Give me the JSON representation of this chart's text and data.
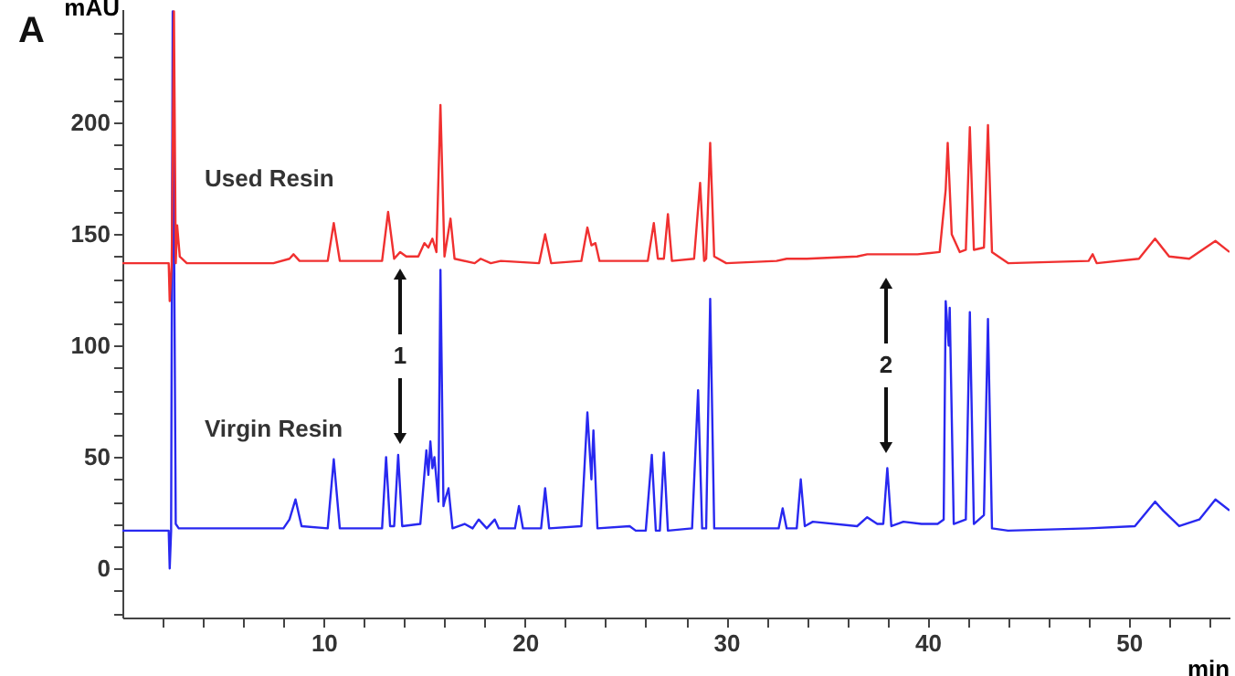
{
  "chart_data": {
    "type": "line",
    "xlabel": "min",
    "ylabel": "mAU",
    "xlim": [
      0,
      55
    ],
    "ylim": [
      -22,
      251
    ],
    "xticks": [
      {
        "value": 2,
        "label": null
      },
      {
        "value": 4,
        "label": null
      },
      {
        "value": 6,
        "label": null
      },
      {
        "value": 8,
        "label": null
      },
      10,
      {
        "value": 12,
        "label": null
      },
      {
        "value": 14,
        "label": null
      },
      {
        "value": 16,
        "label": null
      },
      {
        "value": 18,
        "label": null
      },
      20,
      {
        "value": 22,
        "label": null
      },
      {
        "value": 24,
        "label": null
      },
      {
        "value": 26,
        "label": null
      },
      {
        "value": 28,
        "label": null
      },
      30,
      {
        "value": 32,
        "label": null
      },
      {
        "value": 34,
        "label": null
      },
      {
        "value": 36,
        "label": null
      },
      {
        "value": 38,
        "label": null
      },
      40,
      {
        "value": 42,
        "label": null
      },
      {
        "value": 44,
        "label": null
      },
      {
        "value": 46,
        "label": null
      },
      {
        "value": 48,
        "label": null
      },
      50,
      {
        "value": 52,
        "label": null
      },
      {
        "value": 54,
        "label": null
      }
    ],
    "yticks": [
      {
        "value": -20,
        "label": null
      },
      {
        "value": -10,
        "label": null
      },
      0,
      {
        "value": 10,
        "label": null
      },
      {
        "value": 20,
        "label": null
      },
      {
        "value": 30,
        "label": null
      },
      {
        "value": 40,
        "label": null
      },
      50,
      {
        "value": 60,
        "label": null
      },
      {
        "value": 70,
        "label": null
      },
      {
        "value": 80,
        "label": null
      },
      {
        "value": 90,
        "label": null
      },
      100,
      {
        "value": 110,
        "label": null
      },
      {
        "value": 120,
        "label": null
      },
      {
        "value": 130,
        "label": null
      },
      {
        "value": 140,
        "label": null
      },
      150,
      {
        "value": 160,
        "label": null
      },
      {
        "value": 170,
        "label": null
      },
      {
        "value": 180,
        "label": null
      },
      {
        "value": 190,
        "label": null
      },
      200,
      {
        "value": 210,
        "label": null
      },
      {
        "value": 220,
        "label": null
      },
      {
        "value": 230,
        "label": null
      },
      {
        "value": 240,
        "label": null
      }
    ],
    "grid": false,
    "legend": false,
    "marker": "none",
    "line_style": "solid",
    "annotations": [
      "A",
      "1",
      "2"
    ],
    "series": [
      {
        "name": "Used Resin",
        "color": "#f03030",
        "x": [
          0,
          2.3,
          2.35,
          2.45,
          2.56,
          2.65,
          2.72,
          2.85,
          3.2,
          7.5,
          8.3,
          8.5,
          8.8,
          10.2,
          10.5,
          10.8,
          12,
          12.9,
          13.2,
          13.5,
          13.8,
          14.1,
          14.7,
          15.0,
          15.2,
          15.4,
          15.6,
          15.8,
          16.0,
          16.3,
          16.5,
          17.5,
          17.8,
          18.3,
          18.8,
          20.7,
          21,
          21.3,
          22.8,
          23.1,
          23.3,
          23.5,
          23.7,
          26.1,
          26.4,
          26.6,
          26.9,
          27.1,
          27.3,
          28.4,
          28.7,
          28.9,
          29.0,
          29.2,
          29.4,
          30,
          32.5,
          33,
          34,
          36.5,
          37,
          38,
          39.5,
          40.6,
          40.9,
          41.0,
          41.2,
          41.6,
          41.9,
          42.1,
          42.3,
          42.8,
          43,
          43.2,
          44,
          48,
          48.2,
          48.4,
          50.5,
          51.3,
          52,
          53,
          54.3,
          55
        ],
        "values": [
          137,
          137,
          120,
          137,
          250,
          137,
          154,
          140,
          137,
          137,
          139,
          141,
          138,
          138,
          155,
          138,
          138,
          138,
          160,
          139,
          142,
          140,
          140,
          146,
          144,
          148,
          142,
          208,
          140,
          157,
          139,
          137,
          139,
          137,
          138,
          137,
          150,
          137,
          138,
          153,
          145,
          146,
          138,
          138,
          155,
          139,
          139,
          159,
          138,
          139,
          173,
          138,
          139,
          191,
          140,
          137,
          138,
          139,
          139,
          140,
          141,
          141,
          141,
          142,
          170,
          191,
          150,
          142,
          143,
          198,
          143,
          144,
          199,
          142,
          137,
          138,
          141,
          137,
          139,
          148,
          140,
          139,
          147,
          142
        ]
      },
      {
        "name": "Virgin Resin",
        "color": "#2828f0",
        "x": [
          0,
          2.3,
          2.35,
          2.42,
          2.5,
          2.65,
          2.8,
          8.0,
          8.3,
          8.6,
          8.9,
          10.2,
          10.5,
          10.8,
          12.9,
          13.1,
          13.3,
          13.5,
          13.7,
          13.9,
          14.8,
          15.1,
          15.2,
          15.3,
          15.4,
          15.5,
          15.7,
          15.8,
          15.95,
          16.0,
          16.2,
          16.4,
          17,
          17.4,
          17.7,
          18.1,
          18.5,
          18.7,
          19.5,
          19.7,
          19.9,
          20.8,
          21,
          21.2,
          22.8,
          23.1,
          23.3,
          23.4,
          23.6,
          25.2,
          25.5,
          26.0,
          26.3,
          26.5,
          26.7,
          26.9,
          27.1,
          28.3,
          28.6,
          28.8,
          29.0,
          29.2,
          29.4,
          32.6,
          32.8,
          33,
          33.5,
          33.7,
          33.9,
          34.3,
          36.5,
          37,
          37.5,
          37.8,
          38,
          38.2,
          38.8,
          39.7,
          40.5,
          40.8,
          40.9,
          41.05,
          41.1,
          41.3,
          41.9,
          42.1,
          42.3,
          42.8,
          43,
          43.2,
          44,
          48,
          50.3,
          51.3,
          51.7,
          52.5,
          53.5,
          54.3,
          55
        ],
        "values": [
          17,
          17,
          0,
          17,
          250,
          20,
          18,
          18,
          22,
          31,
          19,
          18,
          49,
          18,
          18,
          50,
          19,
          19,
          51,
          19,
          20,
          53,
          42,
          57,
          45,
          50,
          30,
          134,
          28,
          30,
          36,
          18,
          20,
          18,
          22,
          18,
          22,
          18,
          18,
          28,
          18,
          18,
          36,
          18,
          19,
          70,
          40,
          62,
          18,
          19,
          17,
          17,
          51,
          17,
          17,
          52,
          17,
          18,
          80,
          18,
          18,
          121,
          18,
          18,
          27,
          18,
          18,
          40,
          19,
          21,
          19,
          23,
          20,
          20,
          45,
          19,
          21,
          20,
          20,
          22,
          120,
          100,
          117,
          20,
          22,
          115,
          20,
          24,
          112,
          18,
          17,
          18,
          19,
          30,
          26,
          19,
          22,
          31,
          26
        ]
      }
    ]
  }
}
